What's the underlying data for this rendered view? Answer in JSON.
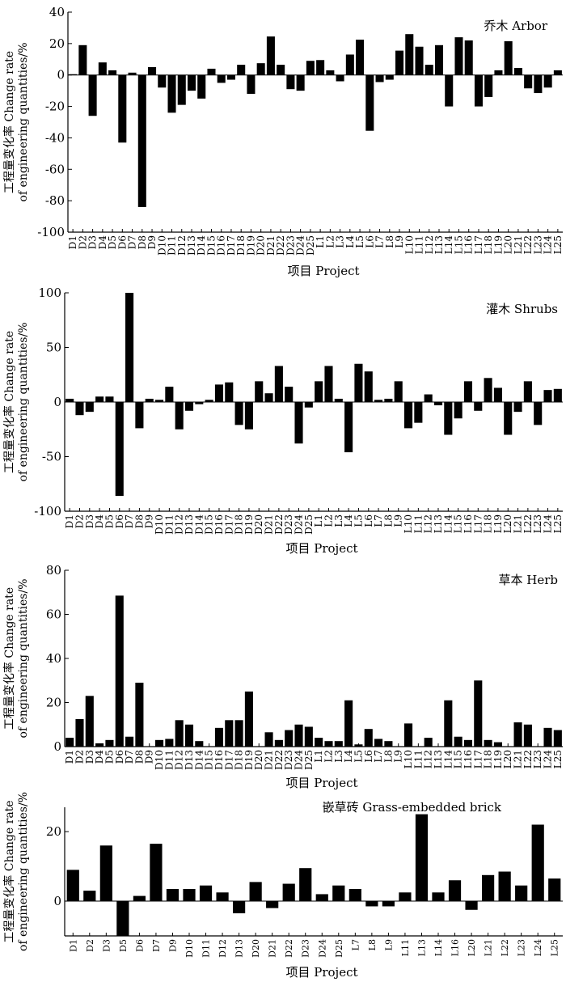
{
  "chart_data": [
    {
      "type": "bar",
      "title": "乔木 Arbor",
      "xlabel": "项目 Project",
      "ylabel_line1": "工程量变化率 Change rate",
      "ylabel_line2": "of engineering quantities/%",
      "ylim": [
        -100,
        40
      ],
      "yticks": [
        40,
        20,
        0,
        -20,
        -40,
        -60,
        -80,
        -100
      ],
      "categories": [
        "D1",
        "D2",
        "D3",
        "D4",
        "D5",
        "D6",
        "D7",
        "D8",
        "D9",
        "D10",
        "D11",
        "D12",
        "D13",
        "D14",
        "D15",
        "D16",
        "D17",
        "D18",
        "D19",
        "D20",
        "D21",
        "D22",
        "D23",
        "D24",
        "D25",
        "L1",
        "L2",
        "L3",
        "L4",
        "L5",
        "L6",
        "L7",
        "L8",
        "L9",
        "L10",
        "L11",
        "L12",
        "L13",
        "L14",
        "L15",
        "L16",
        "L17",
        "L18",
        "L19",
        "L20",
        "L21",
        "L22",
        "L23",
        "L24",
        "L25"
      ],
      "values": [
        0.5,
        19,
        -26,
        8,
        3,
        -43,
        1.5,
        -84,
        5,
        -8,
        -24,
        -19,
        -10,
        -15,
        4,
        -5,
        -3,
        6.5,
        -12,
        7.5,
        24.5,
        6.5,
        -9,
        -10,
        9,
        9.5,
        3,
        -4,
        13,
        22.5,
        -35.5,
        -4.5,
        -3,
        15.5,
        26,
        18,
        6.5,
        19,
        -20,
        24,
        22,
        -20,
        -14,
        3,
        21.5,
        4.5,
        -8.5,
        -11.5,
        -8,
        3
      ]
    },
    {
      "type": "bar",
      "title": "灌木 Shrubs",
      "xlabel": "项目 Project",
      "ylabel_line1": "工程量变化率 Change rate",
      "ylabel_line2": "of engineering quantities/%",
      "ylim": [
        -100,
        100
      ],
      "yticks": [
        100,
        50,
        0,
        -50,
        -100
      ],
      "categories": [
        "D1",
        "D2",
        "D3",
        "D4",
        "D5",
        "D6",
        "D7",
        "D8",
        "D9",
        "D10",
        "D11",
        "D12",
        "D13",
        "D14",
        "D15",
        "D16",
        "D17",
        "D18",
        "D19",
        "D20",
        "D21",
        "D22",
        "D23",
        "D24",
        "D25",
        "L1",
        "L2",
        "L3",
        "L4",
        "L5",
        "L6",
        "L7",
        "L8",
        "L9",
        "L10",
        "L11",
        "L12",
        "L13",
        "L14",
        "L15",
        "L16",
        "L17",
        "L18",
        "L19",
        "L20",
        "L21",
        "L22",
        "L23",
        "L24",
        "L25"
      ],
      "values": [
        3,
        -12,
        -9,
        5,
        5,
        -86,
        100,
        -24,
        3,
        2,
        14,
        -25,
        -8,
        -2,
        2,
        16,
        18,
        -21,
        -25,
        19,
        8,
        33,
        14,
        -38,
        -5,
        19,
        33,
        3,
        -46,
        35,
        28,
        2,
        3,
        19,
        -24,
        -19,
        7,
        -3,
        -30,
        -15,
        19,
        -8,
        22,
        13,
        -30,
        -9,
        19,
        -21,
        11,
        12
      ]
    },
    {
      "type": "bar",
      "title": "草本 Herb",
      "xlabel": "项目 Project",
      "ylabel_line1": "工程量变化率 Change rate",
      "ylabel_line2": "of engineering quantities/%",
      "ylim": [
        0,
        80
      ],
      "yticks": [
        80,
        60,
        40,
        20,
        0
      ],
      "categories": [
        "D1",
        "D2",
        "D3",
        "D4",
        "D5",
        "D6",
        "D7",
        "D8",
        "D9",
        "D10",
        "D11",
        "D12",
        "D13",
        "D14",
        "D15",
        "D16",
        "D17",
        "D18",
        "D19",
        "D20",
        "D21",
        "D22",
        "D23",
        "D24",
        "D25",
        "L1",
        "L2",
        "L3",
        "L4",
        "L5",
        "L6",
        "L7",
        "L8",
        "L9",
        "L10",
        "L11",
        "L12",
        "L13",
        "L14",
        "L15",
        "L16",
        "L17",
        "L18",
        "L19",
        "L20",
        "L21",
        "L22",
        "L23",
        "L24",
        "L25"
      ],
      "values": [
        4,
        12.5,
        23,
        1.5,
        3,
        68.5,
        4.5,
        29,
        0,
        3,
        3.5,
        12,
        10,
        2.5,
        0,
        8.5,
        12,
        12,
        25,
        0,
        6.5,
        3,
        7.5,
        10,
        9,
        4,
        2.5,
        2.5,
        21,
        1,
        8,
        3.5,
        2.5,
        0,
        10.5,
        0,
        4,
        0,
        21,
        4.5,
        3,
        30,
        3,
        2,
        0,
        11,
        10,
        0,
        8.5,
        7.5
      ]
    },
    {
      "type": "bar",
      "title": "嵌草砖 Grass-embedded brick",
      "xlabel": "项目 Project",
      "ylabel_line1": "工程量变化率 Change rate",
      "ylabel_line2": "of engineering quantities/%",
      "ylim": [
        -10,
        27
      ],
      "yticks": [
        20,
        0
      ],
      "categories": [
        "D1",
        "D2",
        "D3",
        "D5",
        "D6",
        "D7",
        "D9",
        "D10",
        "D11",
        "D12",
        "D13",
        "D20",
        "D21",
        "D22",
        "D23",
        "D24",
        "D25",
        "L7",
        "L8",
        "L9",
        "L11",
        "L13",
        "L14",
        "L16",
        "L20",
        "L21",
        "L22",
        "L23",
        "L24",
        "L25"
      ],
      "values": [
        9,
        3,
        16,
        -10,
        1.5,
        16.5,
        3.5,
        3.5,
        4.5,
        2.5,
        -3.5,
        5.5,
        -2,
        5,
        9.5,
        2,
        4.5,
        3.5,
        -1.5,
        -1.5,
        2.5,
        25,
        2.5,
        6,
        -2.5,
        7.5,
        8.5,
        4.5,
        22,
        6.5
      ]
    }
  ]
}
